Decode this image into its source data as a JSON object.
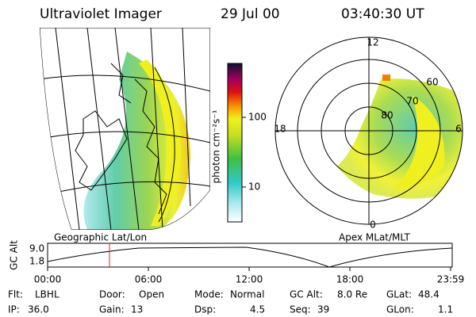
{
  "header": {
    "title": "Ultraviolet Imager",
    "date": "29 Jul 00",
    "time": "03:40:30 UT"
  },
  "left_image": {
    "caption": "Geographic Lat/Lon"
  },
  "colorbar": {
    "label": "photon cm⁻²s⁻¹",
    "ticks": [
      "100",
      "10"
    ]
  },
  "right_image": {
    "caption": "Apex MLat/MLT",
    "mlt_labels": [
      "12",
      "18",
      "6",
      "0"
    ],
    "mlat_labels": [
      "60",
      "70",
      "80"
    ]
  },
  "altitude_plot": {
    "ylabel": "GC Alt",
    "yticks": [
      "9.0",
      "1.8"
    ],
    "xticks": [
      "00:00",
      "06:00",
      "12:00",
      "18:00",
      "23:59"
    ]
  },
  "status": [
    [
      {
        "label": "Flt:",
        "value": "LBHL"
      },
      {
        "label": "Door:",
        "value": "Open"
      },
      {
        "label": "Mode:",
        "value": "Normal"
      },
      {
        "label": "GC Alt:",
        "value": "8.0 Re"
      },
      {
        "label": "GLat:",
        "value": "48.4"
      }
    ],
    [
      {
        "label": "IP:",
        "value": "36.0"
      },
      {
        "label": "Gain:",
        "value": "13"
      },
      {
        "label": "Dsp:",
        "value": "4.5"
      },
      {
        "label": "Seq:",
        "value": "39"
      },
      {
        "label": "GLon:",
        "value": "1.1"
      }
    ]
  ]
}
